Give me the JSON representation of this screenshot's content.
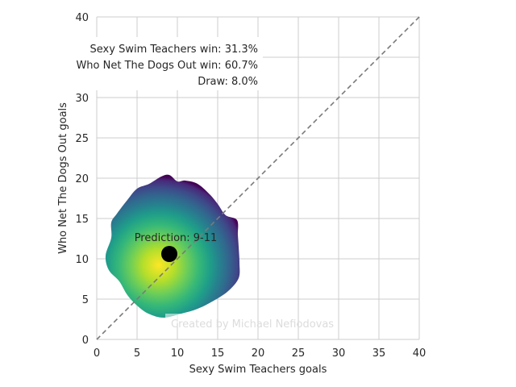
{
  "chart_data": {
    "type": "heatmap",
    "xlabel": "Sexy Swim Teachers goals",
    "ylabel": "Who Net The Dogs Out goals",
    "xlim": [
      0,
      40
    ],
    "ylim": [
      0,
      40
    ],
    "xticks": [
      0,
      5,
      10,
      15,
      20,
      25,
      30,
      35,
      40
    ],
    "yticks": [
      0,
      5,
      10,
      15,
      20,
      25,
      30,
      35,
      40
    ],
    "grid": true,
    "diagonal_line": {
      "from": [
        0,
        0
      ],
      "to": [
        40,
        40
      ],
      "style": "dashed",
      "color": "#7a7a7a"
    },
    "density": {
      "colormap": "viridis",
      "peak": [
        7.7,
        9.2
      ],
      "outline": [
        [
          8.3,
          2.7
        ],
        [
          10.5,
          3.2
        ],
        [
          12.5,
          3.8
        ],
        [
          14.5,
          4.8
        ],
        [
          16.3,
          6.0
        ],
        [
          17.6,
          7.6
        ],
        [
          17.7,
          9.5
        ],
        [
          17.6,
          11.5
        ],
        [
          17.5,
          13.0
        ],
        [
          17.4,
          14.8
        ],
        [
          16.0,
          15.4
        ],
        [
          15.0,
          16.8
        ],
        [
          14.0,
          18.0
        ],
        [
          12.5,
          19.3
        ],
        [
          11.0,
          19.7
        ],
        [
          10.0,
          19.6
        ],
        [
          9.0,
          20.4
        ],
        [
          8.0,
          20.2
        ],
        [
          6.5,
          19.3
        ],
        [
          5.0,
          18.7
        ],
        [
          3.8,
          17.3
        ],
        [
          2.5,
          15.6
        ],
        [
          1.8,
          14.5
        ],
        [
          1.8,
          12.6
        ],
        [
          1.1,
          10.4
        ],
        [
          1.5,
          8.6
        ],
        [
          2.8,
          7.2
        ],
        [
          3.8,
          5.5
        ],
        [
          5.0,
          4.2
        ],
        [
          6.4,
          3.2
        ]
      ]
    },
    "prediction_point": {
      "x": 9,
      "y": 10.6
    },
    "annotations": {
      "home_win": "Sexy Swim Teachers win: 31.3%",
      "away_win": "Who Net The Dogs Out win: 60.7%",
      "draw": "Draw: 8.0%",
      "prediction": "Prediction: 9-11"
    },
    "watermark": "Created by Michael Nefiodovas"
  }
}
